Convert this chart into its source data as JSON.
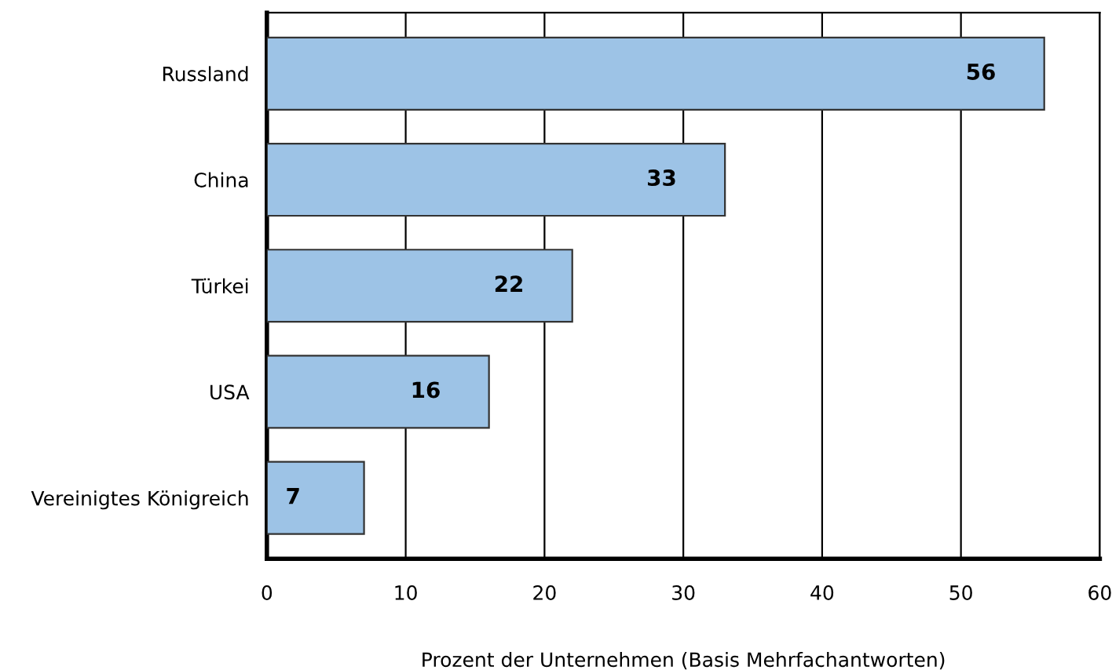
{
  "chart_data": {
    "type": "bar",
    "orientation": "horizontal",
    "xlabel": "Prozent der Unternehmen (Basis Mehrfachantworten)",
    "categories": [
      "Russland",
      "China",
      "Türkei",
      "USA",
      "Vereinigtes Königreich"
    ],
    "values": [
      56,
      33,
      22,
      16,
      7
    ],
    "color": "#9dc3e6",
    "xlim": [
      0,
      60
    ],
    "xticks": [
      0,
      10,
      20,
      30,
      40,
      50,
      60
    ],
    "grid": "x",
    "data_labels": true,
    "legend": false
  }
}
